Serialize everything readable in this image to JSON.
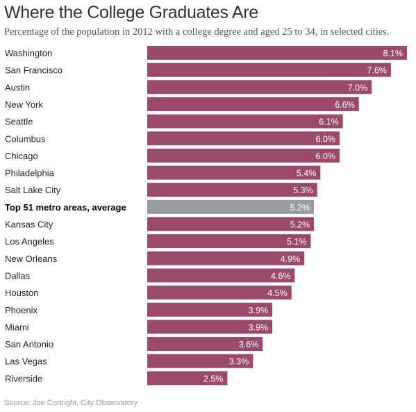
{
  "chart_data": {
    "type": "bar",
    "orientation": "horizontal",
    "title": "Where the College Graduates Are",
    "subtitle": "Percentage of the population in 2012 with a college degree and aged 25 to 34, in selected cities.",
    "categories": [
      "Washington",
      "San Francisco",
      "Austin",
      "New York",
      "Seattle",
      "Columbus",
      "Chicago",
      "Philadelphia",
      "Salt Lake City",
      "Top 51 metro areas, average",
      "Kansas City",
      "Los Angeles",
      "New Orleans",
      "Dallas",
      "Houston",
      "Phoenix",
      "Miami",
      "San Antonio",
      "Las Vegas",
      "Riverside"
    ],
    "values": [
      8.1,
      7.6,
      7.0,
      6.6,
      6.1,
      6.0,
      6.0,
      5.4,
      5.3,
      5.2,
      5.2,
      5.1,
      4.9,
      4.6,
      4.5,
      3.9,
      3.9,
      3.6,
      3.3,
      2.5
    ],
    "value_labels": [
      "8.1%",
      "7.6%",
      "7.0%",
      "6.6%",
      "6.1%",
      "6.0%",
      "6.0%",
      "5.4%",
      "5.3%",
      "5.2%",
      "5.2%",
      "5.1%",
      "4.9%",
      "4.6%",
      "4.5%",
      "3.9%",
      "3.9%",
      "3.6%",
      "3.3%",
      "2.5%"
    ],
    "highlight_index": 9,
    "xlim": [
      0,
      8.1
    ],
    "grid": false,
    "colors": {
      "bar": "#9b4a6c",
      "highlight_bar": "#999c9c"
    },
    "source": "Source: Joe Cortright, City Observatory"
  }
}
